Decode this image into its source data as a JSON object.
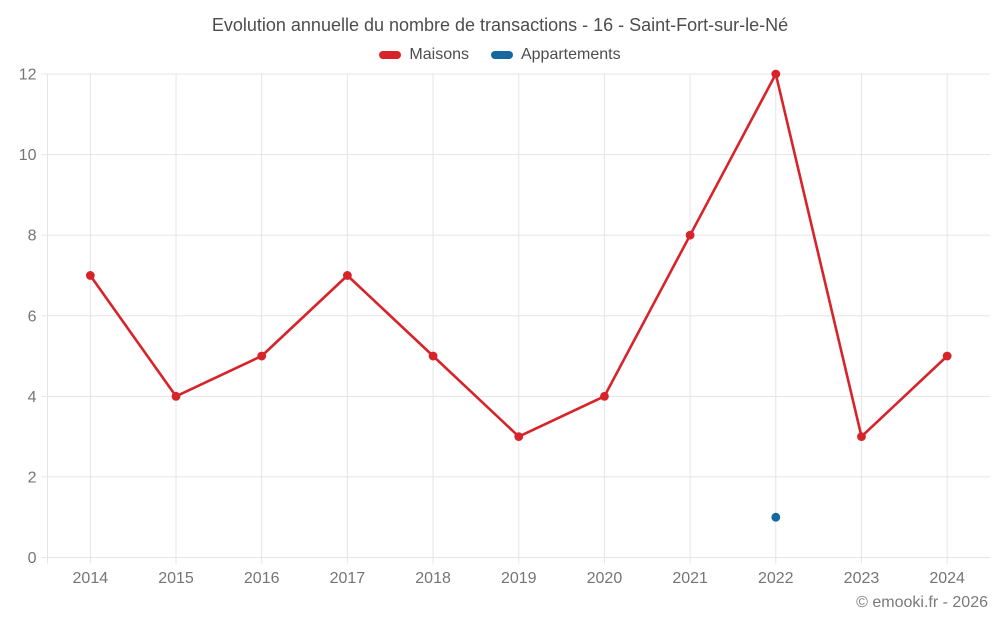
{
  "header": {
    "title": "Evolution annuelle du nombre de transactions - 16 - Saint-Fort-sur-le-Né"
  },
  "legend": {
    "items": [
      {
        "id": "maisons",
        "label": "Maisons",
        "color": "#d7232a"
      },
      {
        "id": "appartements",
        "label": "Appartements",
        "color": "#1569a0"
      }
    ]
  },
  "footer": {
    "copyright": "© emooki.fr - 2026"
  },
  "chart_data": {
    "type": "line",
    "title": "Evolution annuelle du nombre de transactions - 16 - Saint-Fort-sur-le-Né",
    "categories": [
      "2014",
      "2015",
      "2016",
      "2017",
      "2018",
      "2019",
      "2020",
      "2021",
      "2022",
      "2023",
      "2024"
    ],
    "series": [
      {
        "name": "Maisons",
        "color": "#d7232a",
        "values": [
          7,
          4,
          5,
          7,
          5,
          3,
          4,
          8,
          12,
          3,
          5
        ]
      },
      {
        "name": "Appartements",
        "color": "#1569a0",
        "values": [
          null,
          null,
          null,
          null,
          null,
          null,
          null,
          null,
          1,
          null,
          null
        ]
      }
    ],
    "xlabel": "",
    "ylabel": "",
    "ylim": [
      0,
      12
    ],
    "yticks": [
      0,
      2,
      4,
      6,
      8,
      10,
      12
    ],
    "grid": true,
    "legend_position": "top",
    "colors": {
      "grid": "#e5e5e5",
      "axis_label": "#757575"
    }
  }
}
